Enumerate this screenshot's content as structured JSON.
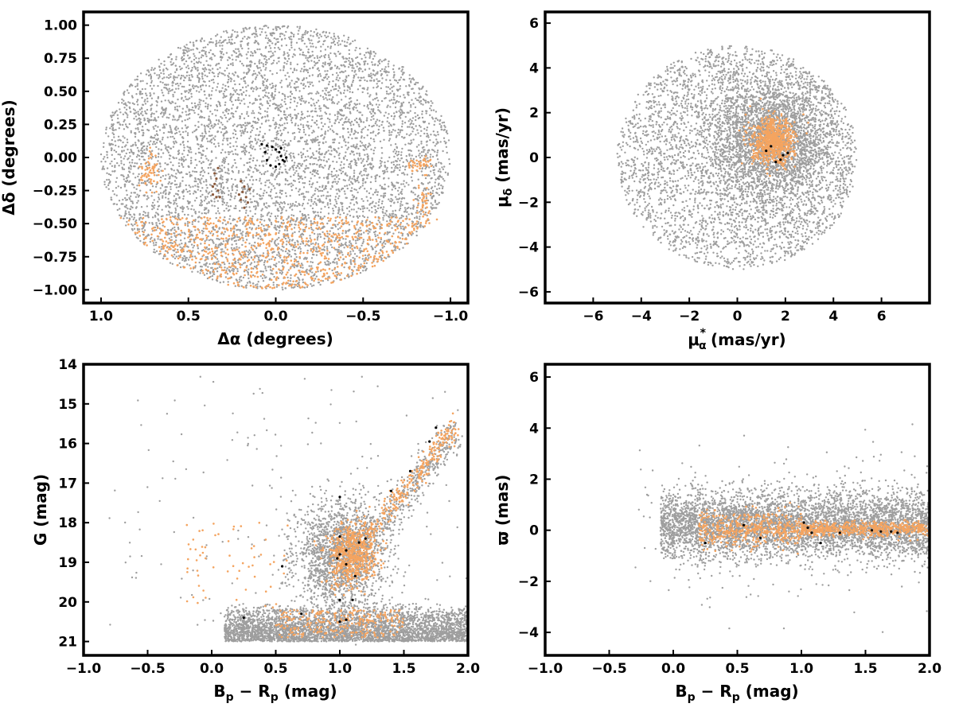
{
  "colors": {
    "field": "#9e9e9e",
    "members": "#f4a460",
    "brown_group": "#8b5a3c",
    "black_group": "#000000"
  },
  "chart_data": [
    {
      "id": "sky",
      "type": "scatter",
      "xlabel": "Δα (degrees)",
      "ylabel": "Δδ (degrees)",
      "xlim": [
        1.1,
        -1.1
      ],
      "ylim": [
        -1.1,
        1.1
      ],
      "xticks": [
        1.0,
        0.5,
        0.0,
        -0.5,
        -1.0
      ],
      "xtick_labels": [
        "1.0",
        "0.5",
        "0.0",
        "−0.5",
        "−1.0"
      ],
      "yticks": [
        -1.0,
        -0.75,
        -0.5,
        -0.25,
        0.0,
        0.25,
        0.5,
        0.75,
        1.0
      ],
      "ytick_labels": [
        "−1.00",
        "−0.75",
        "−0.50",
        "−0.25",
        "0.00",
        "0.25",
        "0.50",
        "0.75",
        "1.00"
      ],
      "series": [
        {
          "kind": "field",
          "distribution": "uniform within circle of radius 1.0 deg centred at (0,0)"
        },
        {
          "kind": "members",
          "distribution": "concentrated in southern band Δδ from −1.0 to −0.4; small clumps at (0.72,−0.1), (−0.82,−0.05), (−0.85,−0.35)"
        },
        {
          "kind": "brown_group",
          "points": [
            [
              0.35,
              -0.12
            ],
            [
              0.34,
              -0.16
            ],
            [
              0.35,
              -0.2
            ],
            [
              0.33,
              -0.25
            ],
            [
              0.36,
              -0.28
            ],
            [
              0.34,
              -0.3
            ],
            [
              0.2,
              -0.18
            ],
            [
              0.18,
              -0.22
            ],
            [
              0.19,
              -0.26
            ],
            [
              0.17,
              -0.3
            ],
            [
              0.2,
              -0.32
            ],
            [
              0.16,
              -0.34
            ],
            [
              0.18,
              -0.38
            ],
            [
              0.21,
              -0.28
            ],
            [
              0.15,
              -0.24
            ],
            [
              0.33,
              -0.08
            ],
            [
              0.36,
              -0.22
            ],
            [
              0.32,
              -0.3
            ]
          ]
        },
        {
          "kind": "black_group",
          "points": [
            [
              0.08,
              0.1
            ],
            [
              0.05,
              0.09
            ],
            [
              0.02,
              0.08
            ],
            [
              0.0,
              0.06
            ],
            [
              -0.02,
              0.04
            ],
            [
              -0.03,
              0.01
            ],
            [
              -0.04,
              -0.02
            ],
            [
              -0.02,
              -0.05
            ],
            [
              0.0,
              -0.07
            ],
            [
              0.03,
              -0.06
            ],
            [
              -0.05,
              -0.03
            ],
            [
              -0.06,
              0.0
            ],
            [
              0.05,
              -0.02
            ],
            [
              -0.03,
              0.07
            ],
            [
              0.06,
              0.04
            ]
          ]
        }
      ]
    },
    {
      "id": "pm",
      "type": "scatter",
      "xlabel": "μ*α  (mas/yr)",
      "ylabel": "μδ (mas/yr)",
      "xlim": [
        -8,
        8
      ],
      "ylim": [
        -6.5,
        6.5
      ],
      "xticks": [
        -6,
        -4,
        -2,
        0,
        2,
        4,
        6
      ],
      "xtick_labels": [
        "−6",
        "−4",
        "−2",
        "0",
        "2",
        "4",
        "6"
      ],
      "yticks": [
        -6,
        -4,
        -2,
        0,
        2,
        4,
        6
      ],
      "ytick_labels": [
        "−6",
        "−4",
        "−2",
        "0",
        "2",
        "4",
        "6"
      ],
      "series": [
        {
          "kind": "field",
          "distribution": "dense core near (1.5,0.7), filling circle of radius 5 centred at (0,0)"
        },
        {
          "kind": "members",
          "distribution": "compact clump centred at (1.5,0.7), radius ~0.9"
        },
        {
          "kind": "black_group",
          "points": [
            [
              1.2,
              0.3
            ],
            [
              1.6,
              -0.2
            ],
            [
              1.9,
              0.1
            ],
            [
              2.1,
              0.2
            ],
            [
              1.8,
              -0.1
            ],
            [
              1.4,
              0.5
            ]
          ]
        }
      ]
    },
    {
      "id": "cmd",
      "type": "scatter",
      "xlabel": "Bp − Rp (mag)",
      "ylabel": "G (mag)",
      "xlim": [
        -1.0,
        2.0
      ],
      "ylim": [
        21.35,
        14.0
      ],
      "xticks": [
        -1.0,
        -0.5,
        0.0,
        0.5,
        1.0,
        1.5,
        2.0
      ],
      "xtick_labels": [
        "−1.0",
        "−0.5",
        "0.0",
        "0.5",
        "1.0",
        "1.5",
        "2.0"
      ],
      "yticks": [
        14,
        15,
        16,
        17,
        18,
        19,
        20,
        21
      ],
      "ytick_labels": [
        "14",
        "15",
        "16",
        "17",
        "18",
        "19",
        "20",
        "21"
      ],
      "series": [
        {
          "kind": "field",
          "distribution": "dense faint band at G 20–21 across colour 0–2; broad clump at (1.0,18.5); tail along G = 17.3 − 2.5·(c−1.4)"
        },
        {
          "kind": "members",
          "distribution": "clump at (1.1,18.8); sequence from (1.1,19) to (1.9,15.6)"
        },
        {
          "kind": "black_group",
          "points": [
            [
              0.25,
              20.4
            ],
            [
              0.7,
              20.3
            ],
            [
              1.0,
              20.5
            ],
            [
              1.05,
              20.45
            ],
            [
              1.0,
              19.95
            ],
            [
              1.1,
              19.95
            ],
            [
              1.12,
              19.35
            ],
            [
              1.05,
              19.05
            ],
            [
              1.0,
              18.8
            ],
            [
              1.05,
              18.7
            ],
            [
              1.15,
              18.5
            ],
            [
              1.0,
              18.35
            ],
            [
              1.2,
              18.4
            ],
            [
              0.55,
              19.1
            ],
            [
              1.0,
              17.35
            ],
            [
              1.4,
              17.2
            ],
            [
              1.55,
              16.7
            ],
            [
              1.7,
              15.95
            ],
            [
              1.75,
              15.6
            ],
            [
              0.98,
              18.9
            ]
          ]
        }
      ]
    },
    {
      "id": "parallax",
      "type": "scatter",
      "xlabel": "Bp − Rp (mag)",
      "ylabel": "ϖ (mas)",
      "xlim": [
        -1.0,
        2.0
      ],
      "ylim": [
        -4.9,
        6.5
      ],
      "xticks": [
        -1.0,
        -0.5,
        0.0,
        0.5,
        1.0,
        1.5,
        2.0
      ],
      "xtick_labels": [
        "−1.0",
        "−0.5",
        "0.0",
        "0.5",
        "1.0",
        "1.5",
        "2.0"
      ],
      "yticks": [
        -4,
        -2,
        0,
        2,
        4,
        6
      ],
      "ytick_labels": [
        "−4",
        "−2",
        "0",
        "2",
        "4",
        "6"
      ],
      "series": [
        {
          "kind": "field",
          "distribution": "horizontal band around ϖ ≈ 0.2 across colour 0–2, spread ±1.5, outliers to ±4"
        },
        {
          "kind": "members",
          "distribution": "narrow band around ϖ ≈ 0 across colour 0.2–2, tightest at colour 1.0–1.8"
        },
        {
          "kind": "black_group",
          "points": [
            [
              0.25,
              -0.5
            ],
            [
              0.55,
              0.2
            ],
            [
              0.68,
              -0.3
            ],
            [
              1.02,
              0.3
            ],
            [
              1.05,
              0.1
            ],
            [
              1.08,
              -0.1
            ],
            [
              1.15,
              -0.5
            ],
            [
              1.3,
              -0.1
            ],
            [
              1.55,
              0.0
            ],
            [
              1.62,
              -0.05
            ],
            [
              1.7,
              -0.05
            ],
            [
              1.75,
              -0.1
            ]
          ]
        }
      ]
    }
  ]
}
